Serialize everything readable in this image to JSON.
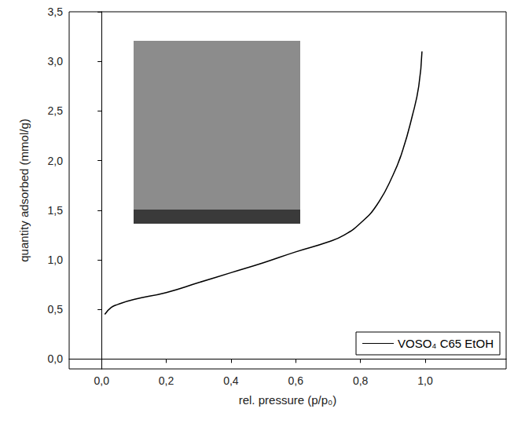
{
  "chart_data": {
    "type": "line",
    "x_label": "rel. pressure (p/p₀)",
    "y_label": "quantity adsorbed (mmol/g)",
    "xlim": [
      -0.1,
      1.25
    ],
    "ylim": [
      -0.1,
      3.5
    ],
    "xticks": [
      {
        "value": 0,
        "label": "0,0"
      },
      {
        "value": 0.2,
        "label": "0,2"
      },
      {
        "value": 0.4,
        "label": "0,4"
      },
      {
        "value": 0.6,
        "label": "0,6"
      },
      {
        "value": 0.8,
        "label": "0,8"
      },
      {
        "value": 1,
        "label": "1,0"
      }
    ],
    "yticks": [
      {
        "value": 0,
        "label": "0,0"
      },
      {
        "value": 0.5,
        "label": "0,5"
      },
      {
        "value": 1,
        "label": "1,0"
      },
      {
        "value": 1.5,
        "label": "1,5"
      },
      {
        "value": 2,
        "label": "2,0"
      },
      {
        "value": 2.5,
        "label": "2,5"
      },
      {
        "value": 3,
        "label": "3,0"
      },
      {
        "value": 3.5,
        "label": "3,5"
      }
    ],
    "grid": false,
    "legend": "lower right",
    "series": [
      {
        "name": "VOSO₄ C65 EtOH",
        "color": "#000000",
        "marker": "none",
        "line_style": "solid",
        "x": [
          0.01,
          0.03,
          0.05,
          0.1,
          0.2,
          0.3,
          0.4,
          0.5,
          0.6,
          0.7,
          0.75,
          0.8,
          0.85,
          0.9,
          0.93,
          0.96,
          0.98,
          0.99
        ],
        "values": [
          0.45,
          0.52,
          0.55,
          0.6,
          0.67,
          0.77,
          0.87,
          0.97,
          1.08,
          1.18,
          1.25,
          1.37,
          1.55,
          1.85,
          2.1,
          2.45,
          2.75,
          3.1
        ]
      }
    ]
  }
}
